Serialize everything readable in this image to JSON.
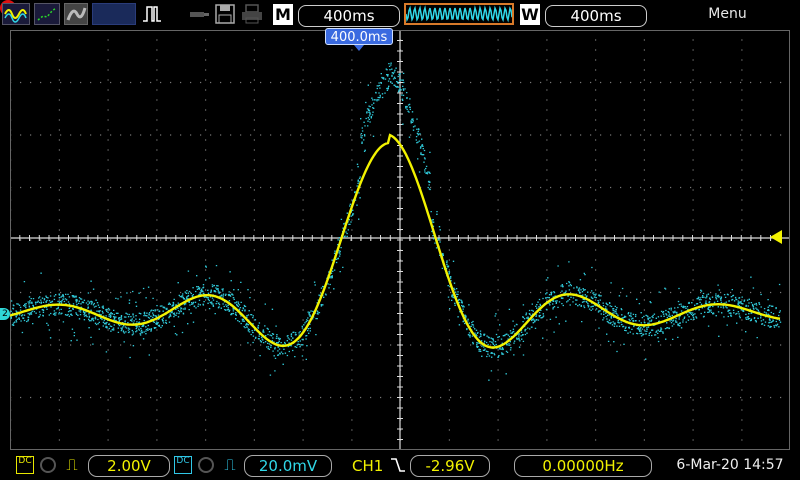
{
  "toolbar": {
    "main_timebase_label": "M",
    "main_timebase": "400ms",
    "window_timebase_label": "W",
    "window_timebase": "400ms",
    "menu_label": "Menu"
  },
  "screen": {
    "trigger_position": "400.0ms",
    "ch2_marker": "2"
  },
  "channels": [
    {
      "name": "CH1",
      "coupling": "DC",
      "scale": "2.00V",
      "color": "#f2f200"
    },
    {
      "name": "CH2",
      "coupling": "DC",
      "scale": "20.0mV",
      "color": "#30d8e8"
    }
  ],
  "trigger": {
    "source": "CH1",
    "level": "-2.96V"
  },
  "frequency": "0.00000Hz",
  "datetime": "6-Mar-20 14:57"
}
